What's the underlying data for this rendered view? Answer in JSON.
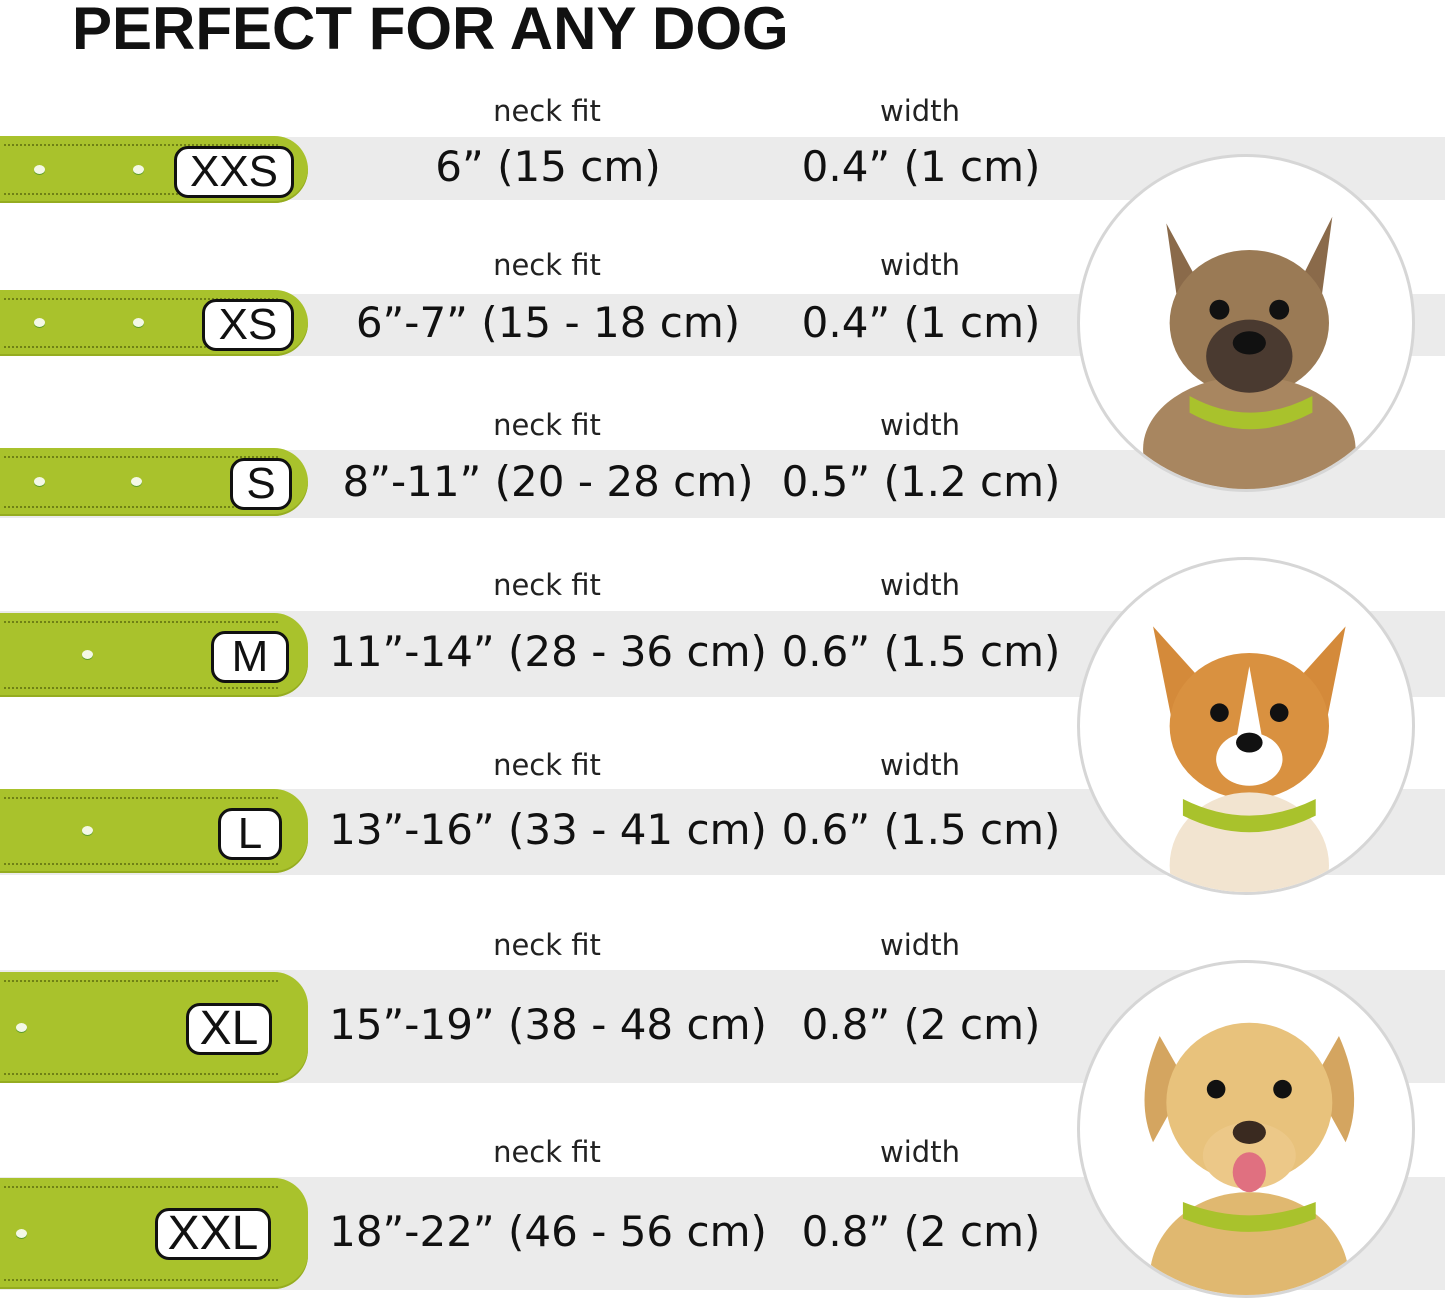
{
  "title": "PERFECT FOR ANY DOG",
  "colors": {
    "collar": "#a9c22c",
    "band": "#ebebeb"
  },
  "column_labels": {
    "neck_fit": "neck fit",
    "width": "width"
  },
  "sizes": [
    {
      "size": "XXS",
      "neck_fit": "6” (15 cm)",
      "width": "0.4” (1 cm)"
    },
    {
      "size": "XS",
      "neck_fit": "6”-7” (15 - 18 cm)",
      "width": "0.4” (1 cm)"
    },
    {
      "size": "S",
      "neck_fit": "8”-11” (20 - 28 cm)",
      "width": "0.5” (1.2 cm)"
    },
    {
      "size": "M",
      "neck_fit": "11”-14” (28 - 36 cm)",
      "width": "0.6” (1.5 cm)"
    },
    {
      "size": "L",
      "neck_fit": "13”-16” (33 - 41 cm)",
      "width": "0.6” (1.5 cm)"
    },
    {
      "size": "XL",
      "neck_fit": "15”-19” (38 - 48 cm)",
      "width": "0.8” (2 cm)"
    },
    {
      "size": "XXL",
      "neck_fit": "18”-22” (46 - 56 cm)",
      "width": "0.8” (2 cm)"
    }
  ],
  "dog_photos": [
    "small terrier wearing collar",
    "corgi wearing collar",
    "labrador wearing collar"
  ]
}
